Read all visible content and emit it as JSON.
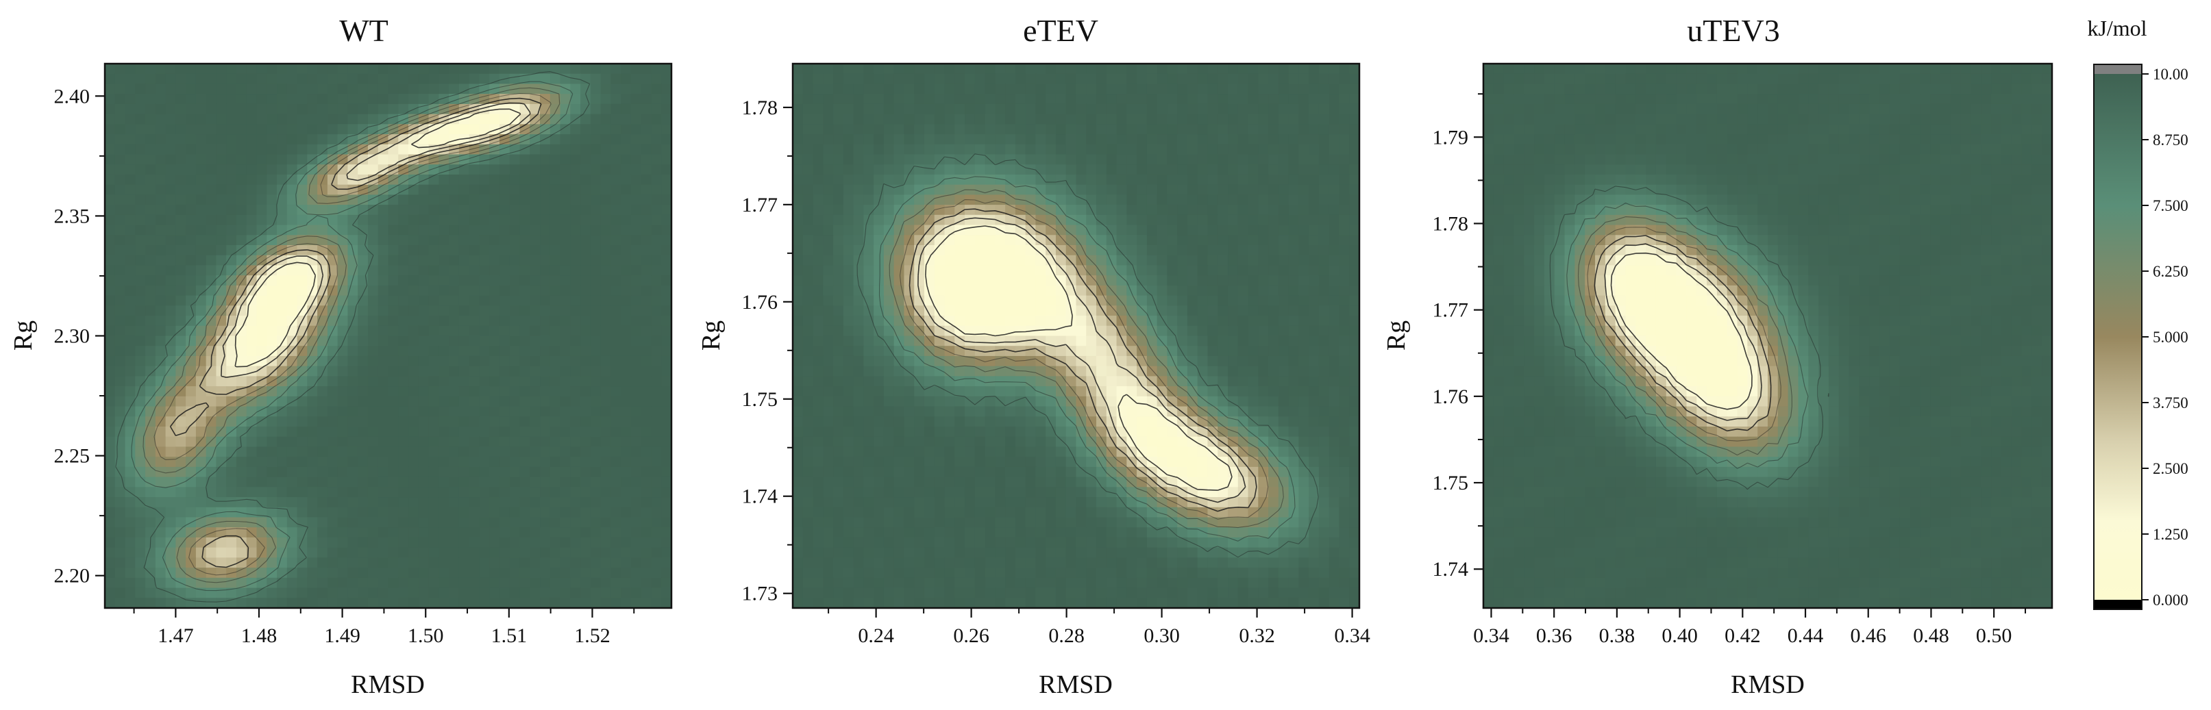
{
  "colors": {
    "bg_high": "#3f6252",
    "teal": "#5a8f78",
    "olive": "#98885f",
    "beige": "#d8d0ae",
    "cream": "#fbf9d6",
    "pale_yellow": "#fdfbcf",
    "over": "#808080",
    "under": "#000000",
    "contour_line": "#1a1a1a"
  },
  "chart_data": [
    {
      "type": "heatmap",
      "title": "WT",
      "xlabel": "RMSD",
      "ylabel": "Rg",
      "xlim": [
        1.4615,
        1.5295
      ],
      "ylim": [
        2.1865,
        2.4135
      ],
      "xticks": [
        1.47,
        1.48,
        1.49,
        1.5,
        1.51,
        1.52
      ],
      "xtick_labels": [
        "1.47",
        "1.48",
        "1.49",
        "1.50",
        "1.51",
        "1.52"
      ],
      "yticks": [
        2.2,
        2.25,
        2.3,
        2.35,
        2.4
      ],
      "ytick_labels": [
        "2.20",
        "2.25",
        "2.30",
        "2.35",
        "2.40"
      ],
      "basins": [
        {
          "x": 1.48,
          "y": 2.297,
          "sx": 0.0055,
          "sy": 0.018,
          "rho": 0.45,
          "depth": 9.6
        },
        {
          "x": 1.484,
          "y": 2.325,
          "sx": 0.0045,
          "sy": 0.012,
          "rho": 0.4,
          "depth": 8.0
        },
        {
          "x": 1.492,
          "y": 2.368,
          "sx": 0.005,
          "sy": 0.01,
          "rho": 0.6,
          "depth": 7.8
        },
        {
          "x": 1.502,
          "y": 2.384,
          "sx": 0.005,
          "sy": 0.008,
          "rho": 0.5,
          "depth": 7.2
        },
        {
          "x": 1.51,
          "y": 2.392,
          "sx": 0.005,
          "sy": 0.009,
          "rho": 0.5,
          "depth": 7.8
        },
        {
          "x": 1.476,
          "y": 2.21,
          "sx": 0.005,
          "sy": 0.011,
          "rho": 0.2,
          "depth": 7.4
        },
        {
          "x": 1.47,
          "y": 2.258,
          "sx": 0.004,
          "sy": 0.016,
          "rho": 0.3,
          "depth": 5.8
        }
      ]
    },
    {
      "type": "heatmap",
      "title": "eTEV",
      "xlabel": "RMSD",
      "ylabel": "Rg",
      "xlim": [
        0.2225,
        0.3415
      ],
      "ylim": [
        1.7285,
        1.7845
      ],
      "xticks": [
        0.24,
        0.26,
        0.28,
        0.3,
        0.32,
        0.34
      ],
      "xtick_labels": [
        "0.24",
        "0.26",
        "0.28",
        "0.30",
        "0.32",
        "0.34"
      ],
      "yticks": [
        1.73,
        1.74,
        1.75,
        1.76,
        1.77,
        1.78
      ],
      "ytick_labels": [
        "1.73",
        "1.74",
        "1.75",
        "1.76",
        "1.77",
        "1.78"
      ],
      "basins": [
        {
          "x": 0.266,
          "y": 1.7635,
          "sx": 0.013,
          "sy": 0.0055,
          "rho": -0.2,
          "depth": 9.6
        },
        {
          "x": 0.258,
          "y": 1.76,
          "sx": 0.01,
          "sy": 0.005,
          "rho": -0.1,
          "depth": 6.5
        },
        {
          "x": 0.287,
          "y": 1.755,
          "sx": 0.01,
          "sy": 0.005,
          "rho": -0.4,
          "depth": 6.0
        },
        {
          "x": 0.311,
          "y": 1.742,
          "sx": 0.011,
          "sy": 0.004,
          "rho": -0.35,
          "depth": 8.6
        },
        {
          "x": 0.296,
          "y": 1.747,
          "sx": 0.009,
          "sy": 0.004,
          "rho": -0.3,
          "depth": 6.0
        }
      ]
    },
    {
      "type": "heatmap",
      "title": "uTEV3",
      "xlabel": "RMSD",
      "ylabel": "Rg",
      "xlim": [
        0.3375,
        0.5185
      ],
      "ylim": [
        1.7355,
        1.7985
      ],
      "xticks": [
        0.34,
        0.36,
        0.38,
        0.4,
        0.42,
        0.44,
        0.46,
        0.48,
        0.5
      ],
      "xtick_labels": [
        "0.34",
        "0.36",
        "0.38",
        "0.40",
        "0.42",
        "0.44",
        "0.46",
        "0.48",
        "0.50"
      ],
      "yticks": [
        1.74,
        1.75,
        1.76,
        1.77,
        1.78,
        1.79
      ],
      "ytick_labels": [
        "1.74",
        "1.75",
        "1.76",
        "1.77",
        "1.78",
        "1.79"
      ],
      "basins": [
        {
          "x": 0.401,
          "y": 1.769,
          "sx": 0.019,
          "sy": 0.0065,
          "rho": -0.25,
          "depth": 10.0
        },
        {
          "x": 0.416,
          "y": 1.76,
          "sx": 0.015,
          "sy": 0.0055,
          "rho": -0.3,
          "depth": 6.5
        },
        {
          "x": 0.385,
          "y": 1.774,
          "sx": 0.012,
          "sy": 0.005,
          "rho": -0.2,
          "depth": 5.0
        }
      ]
    }
  ],
  "colorbar": {
    "title": "kJ/mol",
    "min": 0.0,
    "max": 10.0,
    "ticks": [
      0.0,
      1.25,
      2.5,
      3.75,
      5.0,
      6.25,
      7.5,
      8.75,
      10.0
    ],
    "tick_labels": [
      "0.000",
      "1.250",
      "2.500",
      "3.750",
      "5.000",
      "6.250",
      "7.500",
      "8.750",
      "10.00"
    ]
  },
  "contour_levels": [
    1.25,
    2.5,
    3.75,
    5.0,
    6.25,
    7.5,
    8.75
  ]
}
